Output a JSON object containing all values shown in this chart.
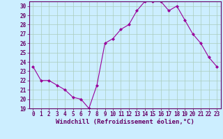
{
  "x": [
    0,
    1,
    2,
    3,
    4,
    5,
    6,
    7,
    8,
    9,
    10,
    11,
    12,
    13,
    14,
    15,
    16,
    17,
    18,
    19,
    20,
    21,
    22,
    23
  ],
  "y": [
    23.5,
    22.0,
    22.0,
    21.5,
    21.0,
    20.2,
    20.0,
    19.0,
    21.5,
    26.0,
    26.5,
    27.5,
    28.0,
    29.5,
    30.5,
    30.5,
    30.5,
    29.5,
    30.0,
    28.5,
    27.0,
    26.0,
    24.5,
    23.5
  ],
  "line_color": "#990099",
  "marker": "D",
  "marker_size": 2,
  "background_color": "#cceeff",
  "grid_color": "#aaccbb",
  "xlabel": "Windchill (Refroidissement éolien,°C)",
  "ylabel": "",
  "xlim": [
    -0.5,
    23.5
  ],
  "ylim": [
    19,
    30.5
  ],
  "yticks": [
    19,
    20,
    21,
    22,
    23,
    24,
    25,
    26,
    27,
    28,
    29,
    30
  ],
  "xticks": [
    0,
    1,
    2,
    3,
    4,
    5,
    6,
    7,
    8,
    9,
    10,
    11,
    12,
    13,
    14,
    15,
    16,
    17,
    18,
    19,
    20,
    21,
    22,
    23
  ],
  "tick_label_color": "#660066",
  "tick_label_fontsize": 5.5,
  "xlabel_fontsize": 6.5,
  "spine_color": "#660066"
}
